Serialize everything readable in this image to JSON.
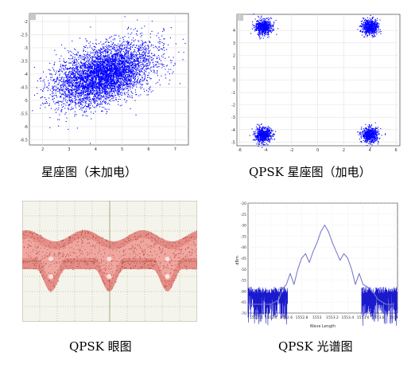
{
  "captions": {
    "c1": "星座图（未加电）",
    "c2": "QPSK 星座图（加电）",
    "c3": "QPSK 眼图",
    "c4": "QPSK 光谱图"
  },
  "chart_data": [
    {
      "type": "scatter",
      "title": "",
      "xlabel": "",
      "ylabel": "",
      "xlim": [
        1.5,
        7.5
      ],
      "ylim": [
        -6.7,
        -1.7
      ],
      "xticks": [
        "2",
        "3",
        "4",
        "5",
        "6",
        "7"
      ],
      "yticks": [
        "-2",
        "-2.5",
        "-3",
        "-3.5",
        "-4",
        "-4.5",
        "-5",
        "-5.5",
        "-6",
        "-6.5"
      ],
      "grid": true,
      "color": "#0000ff",
      "cluster": {
        "center": [
          4.3,
          -4.0
        ],
        "spread": [
          1.2,
          0.55
        ],
        "correlation": 0.45
      }
    },
    {
      "type": "scatter",
      "title": "",
      "xlabel": "",
      "ylabel": "",
      "xlim": [
        -6.2,
        6.3
      ],
      "ylim": [
        -5.3,
        5.3
      ],
      "xticks": [
        "-6",
        "-4",
        "-2",
        "0",
        "2",
        "4",
        "6"
      ],
      "yticks": [
        "4",
        "3",
        "2",
        "1",
        "0",
        "-1",
        "-2",
        "-3",
        "-4",
        "-5"
      ],
      "grid": true,
      "color": "#0000ff",
      "clusters": [
        {
          "center": [
            -4.2,
            4.3
          ]
        },
        {
          "center": [
            4.0,
            4.3
          ]
        },
        {
          "center": [
            -4.2,
            -4.4
          ]
        },
        {
          "center": [
            4.0,
            -4.4
          ]
        }
      ]
    },
    {
      "type": "line",
      "title": "",
      "xlabel": "",
      "ylabel": "",
      "background": "#f4f4ec",
      "trace_color": "#d83a34",
      "grid_color": "#9a9a6a",
      "eye_count": 3
    },
    {
      "type": "line",
      "title": "",
      "xlabel": "Wave Length",
      "ylabel": "dBm",
      "xlim": [
        1552.1,
        1554.05
      ],
      "ylim": [
        -70,
        -20
      ],
      "xticks": [
        "1552.2",
        "1552.4",
        "1552.6",
        "1552.8",
        "1553",
        "1553.2",
        "1553.4",
        "1553.6",
        "1553.8",
        "1554"
      ],
      "yticks": [
        "-20",
        "-25",
        "-30",
        "-35",
        "-40",
        "-45",
        "-50",
        "-55",
        "-60",
        "-65",
        "-70"
      ],
      "grid": true,
      "series": [
        {
          "color": "#7a7acc",
          "peak": {
            "x": 1553.1,
            "y": -30
          }
        },
        {
          "color": "#1a1acc"
        }
      ],
      "x": [
        1552.1,
        1552.2,
        1552.3,
        1552.4,
        1552.5,
        1552.55,
        1552.6,
        1552.65,
        1552.7,
        1552.75,
        1552.8,
        1552.85,
        1552.9,
        1552.95,
        1553.0,
        1553.05,
        1553.1,
        1553.15,
        1553.2,
        1553.25,
        1553.3,
        1553.35,
        1553.4,
        1553.45,
        1553.5,
        1553.55,
        1553.6,
        1553.7,
        1553.8,
        1553.9,
        1554.0
      ],
      "y": [
        -66,
        -66,
        -66,
        -66,
        -64,
        -59,
        -57,
        -52,
        -57,
        -50,
        -45,
        -43,
        -47,
        -42,
        -38,
        -33,
        -30,
        -33,
        -38,
        -42,
        -46,
        -43,
        -45,
        -50,
        -57,
        -52,
        -57,
        -59,
        -64,
        -66,
        -66
      ]
    }
  ]
}
